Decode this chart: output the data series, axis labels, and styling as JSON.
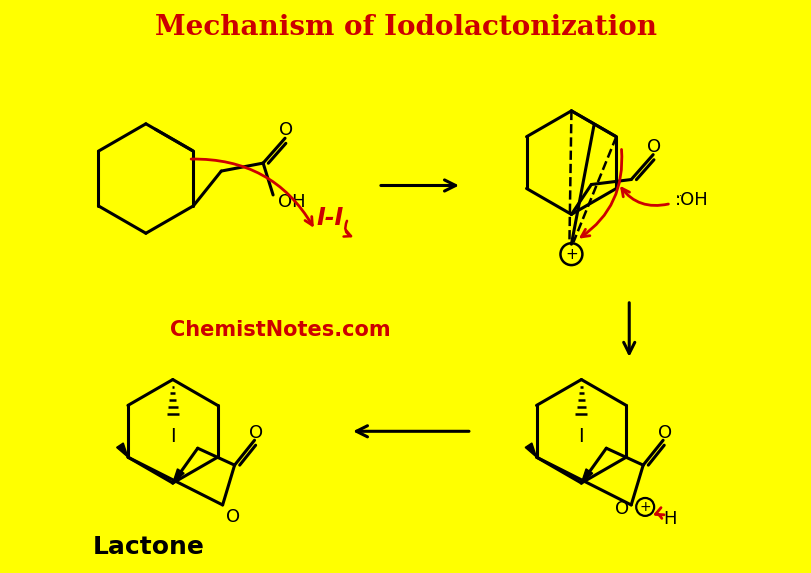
{
  "title": "Mechanism of Iodolactonization",
  "title_color": "#CC0000",
  "title_fontsize": 20,
  "background_color": "#FFFF00",
  "watermark": "ChemistNotes.com",
  "watermark_color": "#CC0000",
  "watermark_fontsize": 15,
  "lactone_label": "Lactone",
  "lactone_fontsize": 18,
  "line_color": "#000000",
  "red_arrow_color": "#CC0000",
  "lw": 2.2
}
